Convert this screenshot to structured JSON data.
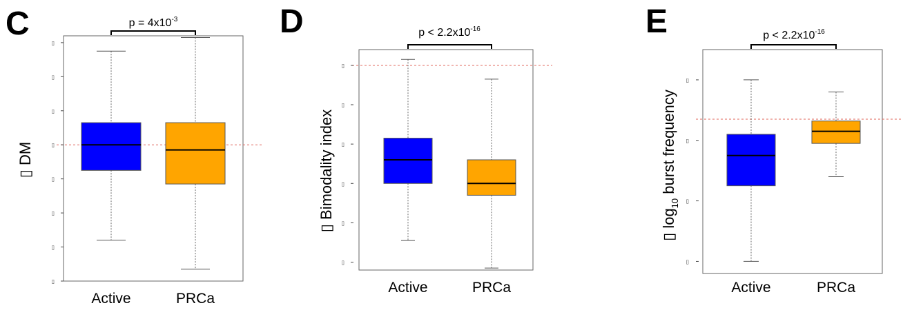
{
  "chart_data": [
    {
      "type": "box",
      "panel": "C",
      "ylabel": "▯ DM",
      "ylabel_sub": "",
      "ylabel_tail": "",
      "pvalue": "p = 4x10",
      "pvalue_exp": "-3",
      "categories": [
        "Active",
        "PRCa"
      ],
      "ylim": [
        -4,
        3.2
      ],
      "tick_values": [
        -4,
        -3,
        -2,
        -1,
        0,
        1,
        2,
        3
      ],
      "tick_labels": [
        "▯",
        "▯",
        "▯",
        "▯",
        "▯",
        "▯",
        "▯",
        "▯"
      ],
      "reference_line": 0,
      "boxes": [
        {
          "name": "Active",
          "color": "#0000ff",
          "whisker_low": -2.8,
          "q1": -0.75,
          "median": 0.0,
          "q3": 0.65,
          "whisker_high": 2.75
        },
        {
          "name": "PRCa",
          "color": "#ffa500",
          "whisker_low": -3.65,
          "q1": -1.15,
          "median": -0.15,
          "q3": 0.65,
          "whisker_high": 3.15
        }
      ]
    },
    {
      "type": "box",
      "panel": "D",
      "ylabel": "▯ Bimodality index",
      "ylabel_sub": "",
      "ylabel_tail": "",
      "pvalue": "p < 2.2x10",
      "pvalue_exp": "-16",
      "categories": [
        "Active",
        "PRCa"
      ],
      "ylim": [
        -2.2,
        3.4
      ],
      "tick_values": [
        -2,
        -1,
        0,
        1,
        2,
        3
      ],
      "tick_labels": [
        "▯",
        "▯",
        "▯",
        "▯",
        "▯",
        "▯"
      ],
      "reference_line": 3,
      "boxes": [
        {
          "name": "Active",
          "color": "#0000ff",
          "whisker_low": -1.45,
          "q1": 0.0,
          "median": 0.6,
          "q3": 1.15,
          "whisker_high": 3.15
        },
        {
          "name": "PRCa",
          "color": "#ffa500",
          "whisker_low": -2.15,
          "q1": -0.3,
          "median": 0.0,
          "q3": 0.6,
          "whisker_high": 2.65
        }
      ]
    },
    {
      "type": "box",
      "panel": "E",
      "ylabel": "▯ log",
      "ylabel_sub": "10",
      "ylabel_tail": " burst frequency",
      "pvalue": "p < 2.2x10",
      "pvalue_exp": "-16",
      "categories": [
        "Active",
        "PRCa"
      ],
      "ylim": [
        -2.2,
        1.5
      ],
      "tick_values": [
        -2,
        -1,
        0,
        1
      ],
      "tick_labels": [
        "▯",
        "▯",
        "▯",
        "▯"
      ],
      "reference_line": 0.35,
      "boxes": [
        {
          "name": "Active",
          "color": "#0000ff",
          "whisker_low": -2.0,
          "q1": -0.75,
          "median": -0.25,
          "q3": 0.1,
          "whisker_high": 1.0
        },
        {
          "name": "PRCa",
          "color": "#ffa500",
          "whisker_low": -0.6,
          "q1": -0.05,
          "median": 0.15,
          "q3": 0.32,
          "whisker_high": 0.8
        }
      ]
    }
  ]
}
